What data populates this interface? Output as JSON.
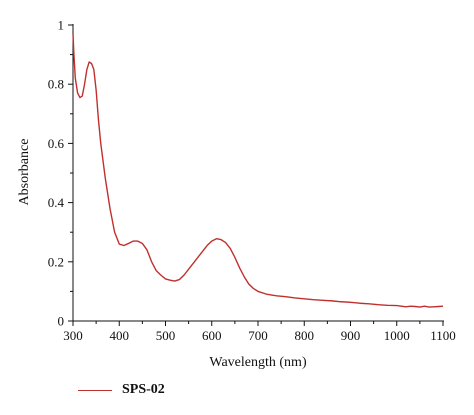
{
  "chart_data": {
    "type": "line",
    "xlabel": "Wavelength (nm)",
    "ylabel": "Absorbance",
    "xlim": [
      300,
      1100
    ],
    "ylim": [
      0,
      1
    ],
    "xticks": [
      300,
      400,
      500,
      600,
      700,
      800,
      900,
      1000,
      1100
    ],
    "xtick_labels": [
      "300",
      "400",
      "500",
      "600",
      "700",
      "800",
      "900",
      "1000",
      "1100"
    ],
    "yticks": [
      0,
      0.2,
      0.4,
      0.6,
      0.8,
      1
    ],
    "ytick_labels": [
      "0",
      "0.2",
      "0.4",
      "0.6",
      "0.8",
      "1"
    ],
    "grid": false,
    "legend_position": "bottom-left",
    "series": [
      {
        "name": "SPS-02",
        "color": "#c0302e",
        "points": [
          [
            300,
            0.97
          ],
          [
            302,
            0.9
          ],
          [
            305,
            0.82
          ],
          [
            310,
            0.77
          ],
          [
            315,
            0.755
          ],
          [
            320,
            0.76
          ],
          [
            325,
            0.8
          ],
          [
            330,
            0.85
          ],
          [
            335,
            0.875
          ],
          [
            340,
            0.87
          ],
          [
            345,
            0.85
          ],
          [
            350,
            0.78
          ],
          [
            355,
            0.68
          ],
          [
            360,
            0.6
          ],
          [
            370,
            0.48
          ],
          [
            380,
            0.38
          ],
          [
            390,
            0.3
          ],
          [
            400,
            0.26
          ],
          [
            410,
            0.255
          ],
          [
            420,
            0.262
          ],
          [
            430,
            0.27
          ],
          [
            440,
            0.27
          ],
          [
            450,
            0.262
          ],
          [
            460,
            0.24
          ],
          [
            470,
            0.2
          ],
          [
            480,
            0.17
          ],
          [
            490,
            0.155
          ],
          [
            500,
            0.142
          ],
          [
            510,
            0.138
          ],
          [
            520,
            0.135
          ],
          [
            530,
            0.14
          ],
          [
            540,
            0.155
          ],
          [
            550,
            0.175
          ],
          [
            560,
            0.195
          ],
          [
            570,
            0.215
          ],
          [
            580,
            0.235
          ],
          [
            590,
            0.255
          ],
          [
            600,
            0.27
          ],
          [
            610,
            0.278
          ],
          [
            620,
            0.275
          ],
          [
            630,
            0.265
          ],
          [
            640,
            0.245
          ],
          [
            650,
            0.215
          ],
          [
            660,
            0.18
          ],
          [
            670,
            0.15
          ],
          [
            680,
            0.125
          ],
          [
            690,
            0.11
          ],
          [
            700,
            0.1
          ],
          [
            720,
            0.09
          ],
          [
            740,
            0.085
          ],
          [
            760,
            0.082
          ],
          [
            780,
            0.078
          ],
          [
            800,
            0.075
          ],
          [
            820,
            0.072
          ],
          [
            840,
            0.07
          ],
          [
            860,
            0.068
          ],
          [
            880,
            0.065
          ],
          [
            900,
            0.063
          ],
          [
            920,
            0.06
          ],
          [
            940,
            0.058
          ],
          [
            960,
            0.055
          ],
          [
            980,
            0.053
          ],
          [
            1000,
            0.052
          ],
          [
            1010,
            0.05
          ],
          [
            1020,
            0.048
          ],
          [
            1030,
            0.05
          ],
          [
            1040,
            0.049
          ],
          [
            1050,
            0.047
          ],
          [
            1060,
            0.05
          ],
          [
            1070,
            0.047
          ],
          [
            1080,
            0.048
          ],
          [
            1090,
            0.049
          ],
          [
            1100,
            0.05
          ]
        ]
      }
    ]
  }
}
